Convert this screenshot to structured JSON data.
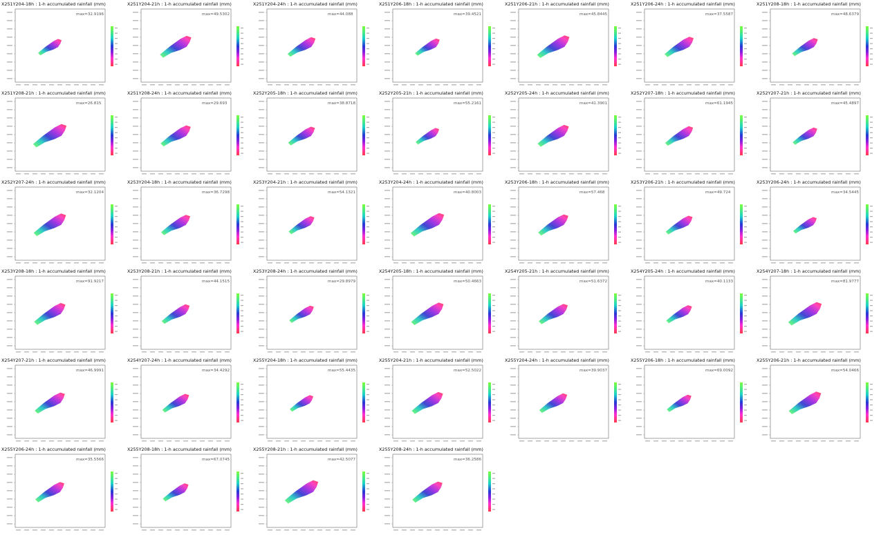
{
  "panels": [
    {
      "title": "X251Y204-18h : 1-h accumulated rainfall (mm)",
      "max": "max=32.9196"
    },
    {
      "title": "X251Y204-21h : 1-h accumulated rainfall (mm)",
      "max": "max=49.5302"
    },
    {
      "title": "X251Y204-24h : 1-h accumulated rainfall (mm)",
      "max": "max=44.088"
    },
    {
      "title": "X251Y206-18h : 1-h accumulated rainfall (mm)",
      "max": "max=39.4521"
    },
    {
      "title": "X251Y206-21h : 1-h accumulated rainfall (mm)",
      "max": "max=45.8445"
    },
    {
      "title": "X251Y206-24h : 1-h accumulated rainfall (mm)",
      "max": "max=37.5587"
    },
    {
      "title": "X251Y208-18h : 1-h accumulated rainfall (mm)",
      "max": "max=48.6379"
    },
    {
      "title": "X251Y208-21h : 1-h accumulated rainfall (mm)",
      "max": "max=26.815"
    },
    {
      "title": "X251Y208-24h : 1-h accumulated rainfall (mm)",
      "max": "max=29.693"
    },
    {
      "title": "X252Y205-18h : 1-h accumulated rainfall (mm)",
      "max": "max=38.8718"
    },
    {
      "title": "X252Y205-21h : 1-h accumulated rainfall (mm)",
      "max": "max=55.2161"
    },
    {
      "title": "X252Y205-24h : 1-h accumulated rainfall (mm)",
      "max": "max=41.3901"
    },
    {
      "title": "X252Y207-18h : 1-h accumulated rainfall (mm)",
      "max": "max=61.1945"
    },
    {
      "title": "X252Y207-21h : 1-h accumulated rainfall (mm)",
      "max": "max=45.4897"
    },
    {
      "title": "X252Y207-24h : 1-h accumulated rainfall (mm)",
      "max": "max=32.1204"
    },
    {
      "title": "X253Y204-18h : 1-h accumulated rainfall (mm)",
      "max": "max=36.7298"
    },
    {
      "title": "X253Y204-21h : 1-h accumulated rainfall (mm)",
      "max": "max=54.1321"
    },
    {
      "title": "X253Y204-24h : 1-h accumulated rainfall (mm)",
      "max": "max=40.8003"
    },
    {
      "title": "X253Y206-18h : 1-h accumulated rainfall (mm)",
      "max": "max=57.468"
    },
    {
      "title": "X253Y206-21h : 1-h accumulated rainfall (mm)",
      "max": "max=49.724"
    },
    {
      "title": "X253Y206-24h : 1-h accumulated rainfall (mm)",
      "max": "max=34.5445"
    },
    {
      "title": "X253Y208-18h : 1-h accumulated rainfall (mm)",
      "max": "max=91.9217"
    },
    {
      "title": "X253Y208-21h : 1-h accumulated rainfall (mm)",
      "max": "max=44.1515"
    },
    {
      "title": "X253Y208-24h : 1-h accumulated rainfall (mm)",
      "max": "max=29.8979"
    },
    {
      "title": "X254Y205-18h : 1-h accumulated rainfall (mm)",
      "max": "max=50.4663"
    },
    {
      "title": "X254Y205-21h : 1-h accumulated rainfall (mm)",
      "max": "max=51.6372"
    },
    {
      "title": "X254Y205-24h : 1-h accumulated rainfall (mm)",
      "max": "max=40.1133"
    },
    {
      "title": "X254Y207-18h : 1-h accumulated rainfall (mm)",
      "max": "max=81.9777"
    },
    {
      "title": "X254Y207-21h : 1-h accumulated rainfall (mm)",
      "max": "max=46.9991"
    },
    {
      "title": "X254Y207-24h : 1-h accumulated rainfall (mm)",
      "max": "max=34.4292"
    },
    {
      "title": "X255Y204-18h : 1-h accumulated rainfall (mm)",
      "max": "max=55.4435"
    },
    {
      "title": "X255Y204-21h : 1-h accumulated rainfall (mm)",
      "max": "max=52.5022"
    },
    {
      "title": "X255Y204-24h : 1-h accumulated rainfall (mm)",
      "max": "max=39.9037"
    },
    {
      "title": "X255Y206-18h : 1-h accumulated rainfall (mm)",
      "max": "max=69.0092"
    },
    {
      "title": "X255Y206-21h : 1-h accumulated rainfall (mm)",
      "max": "max=54.0466"
    },
    {
      "title": "X255Y206-24h : 1-h accumulated rainfall (mm)",
      "max": "max=35.5566"
    },
    {
      "title": "X255Y208-18h : 1-h accumulated rainfall (mm)",
      "max": "max=67.0745"
    },
    {
      "title": "X255Y208-21h : 1-h accumulated rainfall (mm)",
      "max": "max=42.5077"
    },
    {
      "title": "X255Y208-24h : 1-h accumulated rainfall (mm)",
      "max": "max=36.2586"
    }
  ]
}
